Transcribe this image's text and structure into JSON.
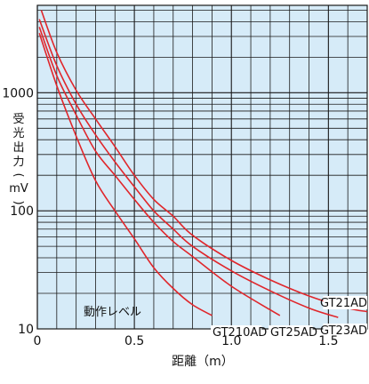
{
  "chart_data": {
    "type": "line",
    "xlabel": "距離（m）",
    "ylabel_chars": [
      "受",
      "光",
      "出",
      "力",
      "(",
      "mV",
      ")"
    ],
    "xlim": [
      0,
      1.7
    ],
    "ylim": [
      10,
      5500
    ],
    "yscale": "log",
    "x_ticks": [
      {
        "value": 0,
        "label": "0"
      },
      {
        "value": 0.5,
        "label": "0.5"
      },
      {
        "value": 1.0,
        "label": "1.0"
      },
      {
        "value": 1.5,
        "label": "1.5"
      }
    ],
    "y_ticks": [
      {
        "value": 10,
        "label": "10"
      },
      {
        "value": 100,
        "label": "100"
      },
      {
        "value": 1000,
        "label": "1000"
      }
    ],
    "grid": true,
    "colors": {
      "plot_bg": "#d6ebf8",
      "grid": "#1a1a1a",
      "series": "#e0262b"
    },
    "annotation": "動作レベル",
    "series": [
      {
        "name": "GT21AD",
        "x": [
          0.02,
          0.1,
          0.2,
          0.3,
          0.4,
          0.5,
          0.6,
          0.7,
          0.8,
          1.0,
          1.2,
          1.4,
          1.6,
          1.7
        ],
        "y": [
          5000,
          2200,
          1050,
          600,
          350,
          200,
          125,
          90,
          62,
          38,
          26,
          19,
          15,
          14
        ]
      },
      {
        "name": "GT23AD",
        "x": [
          0.01,
          0.1,
          0.2,
          0.3,
          0.4,
          0.5,
          0.6,
          0.7,
          0.8,
          1.0,
          1.2,
          1.4,
          1.55
        ],
        "y": [
          4200,
          1700,
          800,
          440,
          260,
          160,
          100,
          70,
          50,
          31,
          21,
          15,
          12.5
        ]
      },
      {
        "name": "GT25AD",
        "x": [
          0.01,
          0.1,
          0.2,
          0.3,
          0.4,
          0.5,
          0.6,
          0.7,
          0.8,
          1.0,
          1.2,
          1.25
        ],
        "y": [
          3600,
          1400,
          650,
          320,
          200,
          125,
          80,
          55,
          41,
          23,
          14.5,
          13
        ]
      },
      {
        "name": "GT210AD",
        "x": [
          0.01,
          0.1,
          0.2,
          0.3,
          0.4,
          0.5,
          0.6,
          0.7,
          0.8,
          0.9
        ],
        "y": [
          3200,
          1150,
          430,
          180,
          100,
          58,
          33,
          22,
          16,
          13
        ]
      }
    ]
  }
}
